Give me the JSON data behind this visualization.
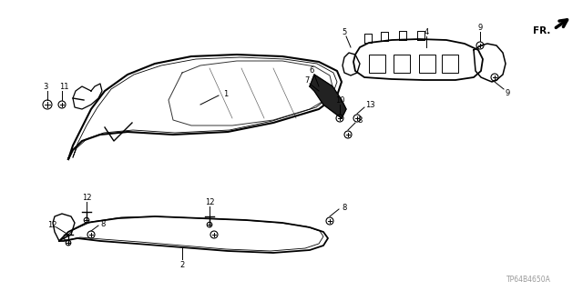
{
  "background_color": "#ffffff",
  "watermark": "TP64B4650A",
  "fr_label": "FR."
}
